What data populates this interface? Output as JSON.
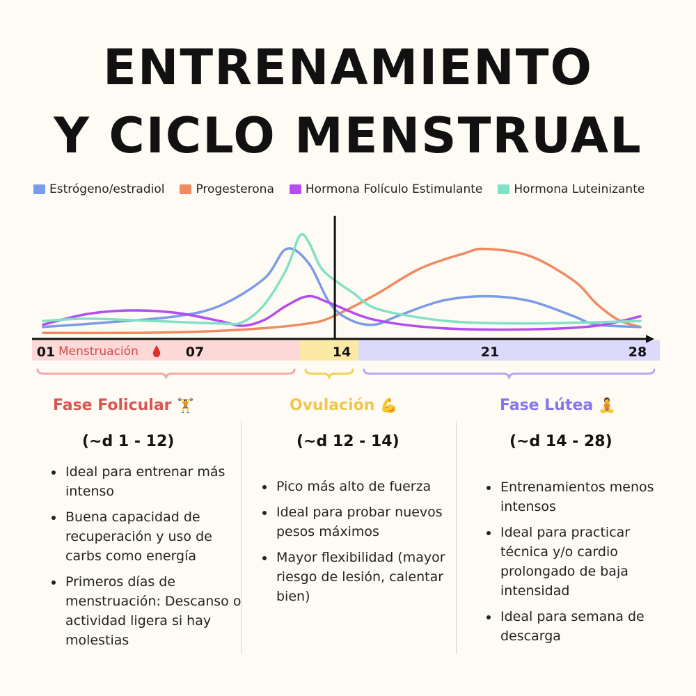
{
  "title": {
    "line1": "ENTRENAMIENTO",
    "line2": "Y CICLO MENSTRUAL"
  },
  "chart_data": {
    "type": "line",
    "xlabel": "",
    "ylabel": "",
    "x_ticks": [
      "01",
      "07",
      "14",
      "21",
      "28"
    ],
    "tick_days": [
      1,
      7,
      14,
      21,
      28
    ],
    "x_range": [
      1,
      28
    ],
    "y_range": [
      0,
      1
    ],
    "grid": false,
    "legend_position": "top",
    "marker_day": 14,
    "series": [
      {
        "name": "Estrógeno/estradiol",
        "color": "#7b9be8",
        "points": [
          [
            1,
            0.06
          ],
          [
            4,
            0.1
          ],
          [
            7,
            0.15
          ],
          [
            9,
            0.24
          ],
          [
            11,
            0.47
          ],
          [
            12,
            0.72
          ],
          [
            13,
            0.6
          ],
          [
            14,
            0.25
          ],
          [
            15,
            0.11
          ],
          [
            16,
            0.08
          ],
          [
            17,
            0.15
          ],
          [
            19,
            0.28
          ],
          [
            21,
            0.32
          ],
          [
            23,
            0.28
          ],
          [
            25,
            0.15
          ],
          [
            26,
            0.08
          ],
          [
            28,
            0.06
          ]
        ]
      },
      {
        "name": "Progesterona",
        "color": "#ef8a62",
        "points": [
          [
            1,
            0.01
          ],
          [
            5,
            0.01
          ],
          [
            8,
            0.02
          ],
          [
            11,
            0.05
          ],
          [
            13,
            0.09
          ],
          [
            14,
            0.14
          ],
          [
            16,
            0.33
          ],
          [
            18,
            0.55
          ],
          [
            20,
            0.68
          ],
          [
            21,
            0.72
          ],
          [
            23,
            0.66
          ],
          [
            25,
            0.45
          ],
          [
            26,
            0.26
          ],
          [
            27,
            0.12
          ],
          [
            28,
            0.06
          ]
        ]
      },
      {
        "name": "Hormona Folículo Estimulante",
        "color": "#b44df0",
        "points": [
          [
            1,
            0.08
          ],
          [
            3,
            0.17
          ],
          [
            5,
            0.2
          ],
          [
            7,
            0.18
          ],
          [
            9,
            0.11
          ],
          [
            10,
            0.07
          ],
          [
            11,
            0.12
          ],
          [
            12,
            0.24
          ],
          [
            13,
            0.32
          ],
          [
            14,
            0.26
          ],
          [
            16,
            0.12
          ],
          [
            19,
            0.05
          ],
          [
            23,
            0.04
          ],
          [
            26,
            0.07
          ],
          [
            28,
            0.15
          ]
        ]
      },
      {
        "name": "Hormona Luteinizante",
        "color": "#82e0c4",
        "points": [
          [
            1,
            0.11
          ],
          [
            3,
            0.13
          ],
          [
            6,
            0.11
          ],
          [
            9,
            0.09
          ],
          [
            10,
            0.1
          ],
          [
            11,
            0.25
          ],
          [
            12,
            0.55
          ],
          [
            12.6,
            0.83
          ],
          [
            13,
            0.78
          ],
          [
            13.5,
            0.58
          ],
          [
            14,
            0.48
          ],
          [
            15,
            0.35
          ],
          [
            16,
            0.22
          ],
          [
            18,
            0.14
          ],
          [
            20,
            0.1
          ],
          [
            23,
            0.09
          ],
          [
            26,
            0.1
          ],
          [
            28,
            0.11
          ]
        ]
      }
    ],
    "bands": [
      {
        "label": "Menstruación",
        "color": "#fcd9d6"
      },
      {
        "label": "",
        "color": "#fde9a6"
      },
      {
        "label": "",
        "color": "#dcd9fb"
      }
    ]
  },
  "phases": [
    {
      "name": "Fase Folicular",
      "icon": "🏋️",
      "range": "(~d 1 - 12)",
      "color": "#d95552",
      "bullets": [
        "Ideal para entrenar más intenso",
        "Buena capacidad de recuperación y uso de carbs como energía",
        "Primeros días de menstruación: Descanso o actividad ligera si hay molestias"
      ]
    },
    {
      "name": "Ovulación",
      "icon": "💪",
      "range": "(~d 12 - 14)",
      "color": "#f2c54b",
      "bullets": [
        "Pico más alto de fuerza",
        "Ideal para probar nuevos pesos máximos",
        "Mayor flexibilidad (mayor riesgo de lesión, calentar bien)"
      ]
    },
    {
      "name": "Fase Lútea",
      "icon": "🧘",
      "range": "(~d 14 - 28)",
      "color": "#8575ef",
      "bullets": [
        "Entrenamientos menos intensos",
        "Ideal para practicar técnica y/o cardio prolongado de baja intensidad",
        "Ideal para semana de descarga"
      ]
    }
  ],
  "icons": {
    "menstruation": "blood-drop-icon",
    "folicular": "weightlifter-icon",
    "ovulacion": "flexed-bicep-icon",
    "lutea": "meditation-icon"
  },
  "blood_drop_color": "#d9342b"
}
